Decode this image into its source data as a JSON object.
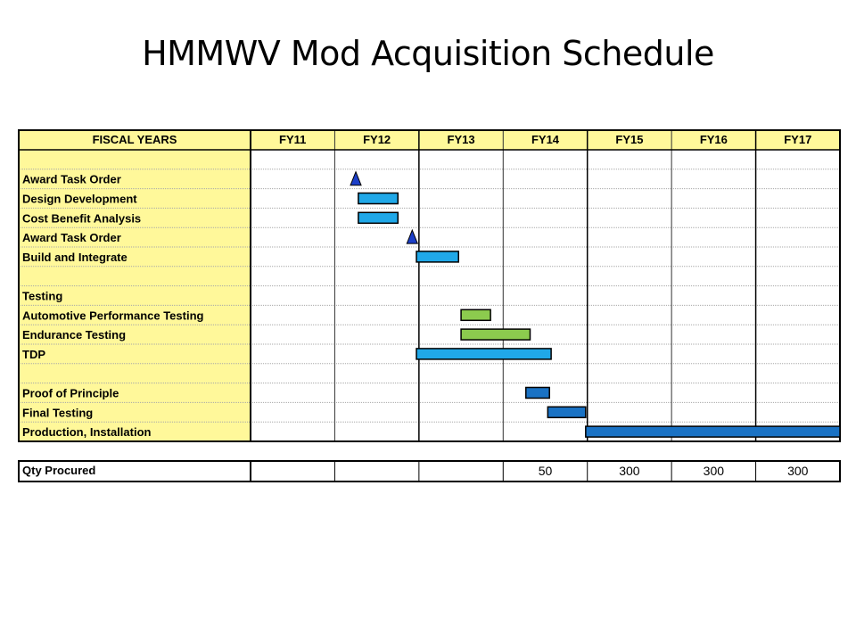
{
  "title": "HMMWV Mod Acquisition Schedule",
  "chart_data": {
    "type": "gantt",
    "header_label": "FISCAL YEARS",
    "fiscal_years": [
      "FY11",
      "FY12",
      "FY13",
      "FY14",
      "FY15",
      "FY16",
      "FY17"
    ],
    "x_range": [
      2011,
      2018
    ],
    "rows": [
      {
        "label": ""
      },
      {
        "label": "Award Task Order",
        "milestone": 2012.25
      },
      {
        "label": "Design Development",
        "bar": {
          "start": 2012.28,
          "end": 2012.75,
          "color": "#20a8e8"
        }
      },
      {
        "label": "Cost Benefit Analysis",
        "bar": {
          "start": 2012.28,
          "end": 2012.75,
          "color": "#20a8e8"
        }
      },
      {
        "label": "Award Task Order",
        "milestone": 2012.92
      },
      {
        "label": "Build and Integrate",
        "bar": {
          "start": 2012.97,
          "end": 2013.47,
          "color": "#20a8e8"
        }
      },
      {
        "label": ""
      },
      {
        "label": "Testing"
      },
      {
        "label": "Automotive Performance Testing",
        "bar": {
          "start": 2013.5,
          "end": 2013.85,
          "color": "#8ccb4e"
        }
      },
      {
        "label": "Endurance Testing",
        "bar": {
          "start": 2013.5,
          "end": 2014.32,
          "color": "#8ccb4e"
        }
      },
      {
        "label": "TDP",
        "bar": {
          "start": 2012.97,
          "end": 2014.57,
          "color": "#20a8e8"
        }
      },
      {
        "label": ""
      },
      {
        "label": "Proof of Principle",
        "bar": {
          "start": 2014.27,
          "end": 2014.55,
          "color": "#1a72c4"
        }
      },
      {
        "label": "Final Testing",
        "bar": {
          "start": 2014.53,
          "end": 2014.98,
          "color": "#1a72c4"
        }
      },
      {
        "label": "Production, Installation",
        "bar": {
          "start": 2014.98,
          "end": 2018.0,
          "color": "#1a72c4"
        }
      }
    ],
    "qty_row": {
      "label": "Qty Procured",
      "values": [
        "",
        "",
        "",
        "50",
        "300",
        "300",
        "300"
      ]
    },
    "colors": {
      "label_bg": "#fff89a",
      "header_bg": "#fff89a",
      "milestone": "#1c3fc8",
      "grid": "#a8a8a8"
    }
  }
}
